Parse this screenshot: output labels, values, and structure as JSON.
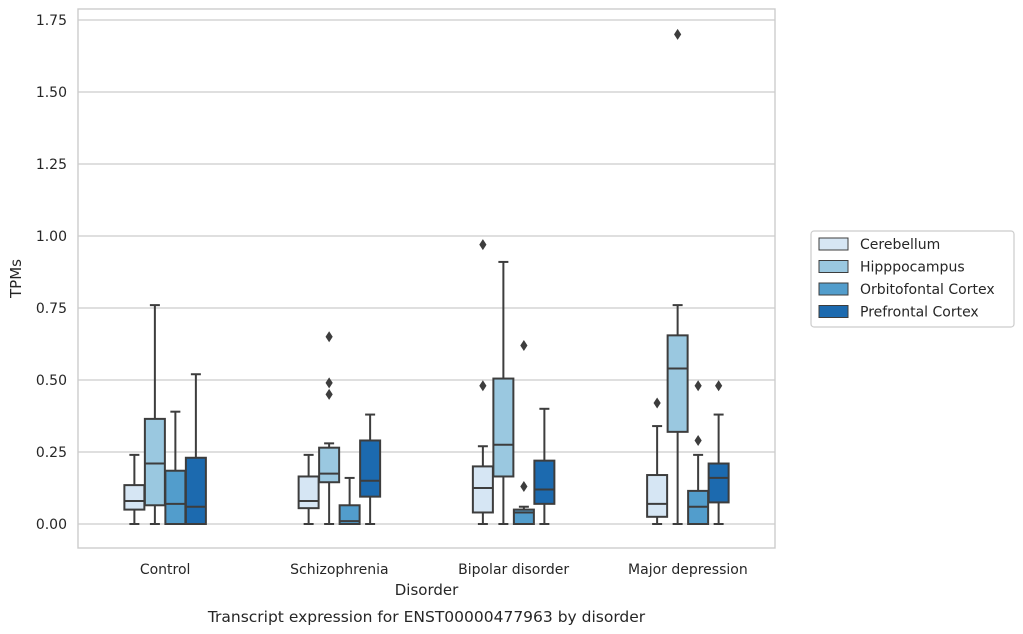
{
  "chart_data": {
    "type": "box",
    "caption": "Transcript expression for ENST00000477963 by disorder",
    "xlabel": "Disorder",
    "ylabel": "TPMs",
    "ylim": [
      -0.08,
      1.79
    ],
    "yticks": [
      "0.00",
      "0.25",
      "0.50",
      "0.75",
      "1.00",
      "1.25",
      "1.50",
      "1.75"
    ],
    "grid": true,
    "legend_position": "right",
    "categories": [
      "Control",
      "Schizophrenia",
      "Bipolar disorder",
      "Major depression"
    ],
    "series": [
      {
        "name": "Cerebellum",
        "color": "#d6e6f4",
        "boxes": [
          {
            "whislo": 0.0,
            "q1": 0.05,
            "med": 0.08,
            "q3": 0.135,
            "whishi": 0.24,
            "fliers": []
          },
          {
            "whislo": 0.0,
            "q1": 0.055,
            "med": 0.08,
            "q3": 0.165,
            "whishi": 0.24,
            "fliers": []
          },
          {
            "whislo": 0.0,
            "q1": 0.04,
            "med": 0.125,
            "q3": 0.2,
            "whishi": 0.27,
            "fliers": [
              0.48,
              0.97
            ]
          },
          {
            "whislo": 0.0,
            "q1": 0.025,
            "med": 0.07,
            "q3": 0.17,
            "whishi": 0.34,
            "fliers": [
              0.42
            ]
          }
        ]
      },
      {
        "name": "Hipppocampus",
        "color": "#9ac8e0",
        "boxes": [
          {
            "whislo": 0.0,
            "q1": 0.065,
            "med": 0.21,
            "q3": 0.365,
            "whishi": 0.76,
            "fliers": []
          },
          {
            "whislo": 0.0,
            "q1": 0.145,
            "med": 0.175,
            "q3": 0.265,
            "whishi": 0.28,
            "fliers": [
              0.45,
              0.49,
              0.65
            ]
          },
          {
            "whislo": 0.0,
            "q1": 0.165,
            "med": 0.275,
            "q3": 0.505,
            "whishi": 0.91,
            "fliers": []
          },
          {
            "whislo": 0.0,
            "q1": 0.32,
            "med": 0.54,
            "q3": 0.655,
            "whishi": 0.76,
            "fliers": [
              1.7
            ]
          }
        ]
      },
      {
        "name": "Orbitofontal Cortex",
        "color": "#529dcc",
        "boxes": [
          {
            "whislo": 0.0,
            "q1": 0.0,
            "med": 0.07,
            "q3": 0.185,
            "whishi": 0.39,
            "fliers": []
          },
          {
            "whislo": 0.0,
            "q1": 0.0,
            "med": 0.01,
            "q3": 0.065,
            "whishi": 0.16,
            "fliers": []
          },
          {
            "whislo": 0.0,
            "q1": 0.0,
            "med": 0.04,
            "q3": 0.05,
            "whishi": 0.06,
            "fliers": [
              0.13,
              0.62
            ]
          },
          {
            "whislo": 0.0,
            "q1": 0.0,
            "med": 0.06,
            "q3": 0.115,
            "whishi": 0.24,
            "fliers": [
              0.29,
              0.48
            ]
          }
        ]
      },
      {
        "name": "Prefrontal Cortex",
        "color": "#1c6aaf",
        "boxes": [
          {
            "whislo": 0.0,
            "q1": 0.0,
            "med": 0.06,
            "q3": 0.23,
            "whishi": 0.52,
            "fliers": []
          },
          {
            "whislo": 0.0,
            "q1": 0.095,
            "med": 0.15,
            "q3": 0.29,
            "whishi": 0.38,
            "fliers": []
          },
          {
            "whislo": 0.0,
            "q1": 0.07,
            "med": 0.12,
            "q3": 0.22,
            "whishi": 0.4,
            "fliers": []
          },
          {
            "whislo": 0.0,
            "q1": 0.075,
            "med": 0.16,
            "q3": 0.21,
            "whishi": 0.38,
            "fliers": [
              0.48
            ]
          }
        ]
      }
    ]
  }
}
